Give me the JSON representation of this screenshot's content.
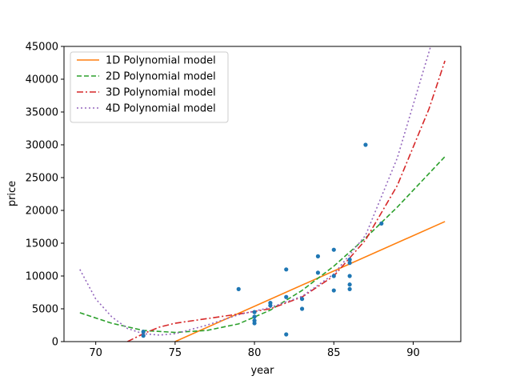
{
  "chart_data": {
    "type": "scatter",
    "xlabel": "year",
    "ylabel": "price",
    "xlim": [
      68,
      93
    ],
    "ylim": [
      0,
      45000
    ],
    "xticks": [
      70,
      75,
      80,
      85,
      90
    ],
    "yticks": [
      0,
      5000,
      10000,
      15000,
      20000,
      25000,
      30000,
      35000,
      40000,
      45000
    ],
    "grid": false,
    "legend_position": "top-left",
    "scatter": {
      "color": "#1f77b4",
      "points": [
        [
          73,
          900
        ],
        [
          73,
          1500
        ],
        [
          79,
          8000
        ],
        [
          80,
          2800
        ],
        [
          80,
          3200
        ],
        [
          80,
          3800
        ],
        [
          80,
          4500
        ],
        [
          81,
          5500
        ],
        [
          81,
          5900
        ],
        [
          82,
          1100
        ],
        [
          82,
          6800
        ],
        [
          82,
          11000
        ],
        [
          83,
          5000
        ],
        [
          83,
          6500
        ],
        [
          84,
          10500
        ],
        [
          84,
          13000
        ],
        [
          85,
          7800
        ],
        [
          85,
          10000
        ],
        [
          85,
          14000
        ],
        [
          86,
          8000
        ],
        [
          86,
          8700
        ],
        [
          86,
          10000
        ],
        [
          86,
          12000
        ],
        [
          86,
          12500
        ],
        [
          87,
          30000
        ],
        [
          88,
          18000
        ]
      ]
    },
    "series": [
      {
        "name": "1D Polynomial model",
        "color": "#ff7f0e",
        "style": "solid",
        "x": [
          75,
          92
        ],
        "y": [
          0,
          18300
        ]
      },
      {
        "name": "2D Polynomial model",
        "color": "#2ca02c",
        "style": "dashed",
        "x": [
          69,
          71,
          73,
          75,
          77,
          79,
          81,
          83,
          85,
          87,
          89,
          92
        ],
        "y": [
          4400,
          2800,
          1700,
          1400,
          1700,
          2700,
          4800,
          7800,
          11500,
          15800,
          20500,
          28200
        ]
      },
      {
        "name": "3D Polynomial model",
        "color": "#d62728",
        "style": "dashdot",
        "x": [
          72,
          73,
          74,
          75,
          77,
          79,
          81,
          83,
          85,
          87,
          89,
          91,
          92
        ],
        "y": [
          0,
          1200,
          2200,
          2800,
          3500,
          4200,
          5000,
          6800,
          10000,
          15500,
          23800,
          35500,
          42800
        ]
      },
      {
        "name": "4D Polynomial model",
        "color": "#9467bd",
        "style": "dotted",
        "x": [
          69,
          70,
          71,
          72,
          73,
          74,
          75,
          77,
          79,
          81,
          83,
          85,
          87,
          89,
          91.1
        ],
        "y": [
          11000,
          6500,
          3800,
          2000,
          1200,
          1000,
          1200,
          2500,
          4100,
          5200,
          6900,
          10300,
          16200,
          28000,
          45000
        ]
      }
    ]
  }
}
